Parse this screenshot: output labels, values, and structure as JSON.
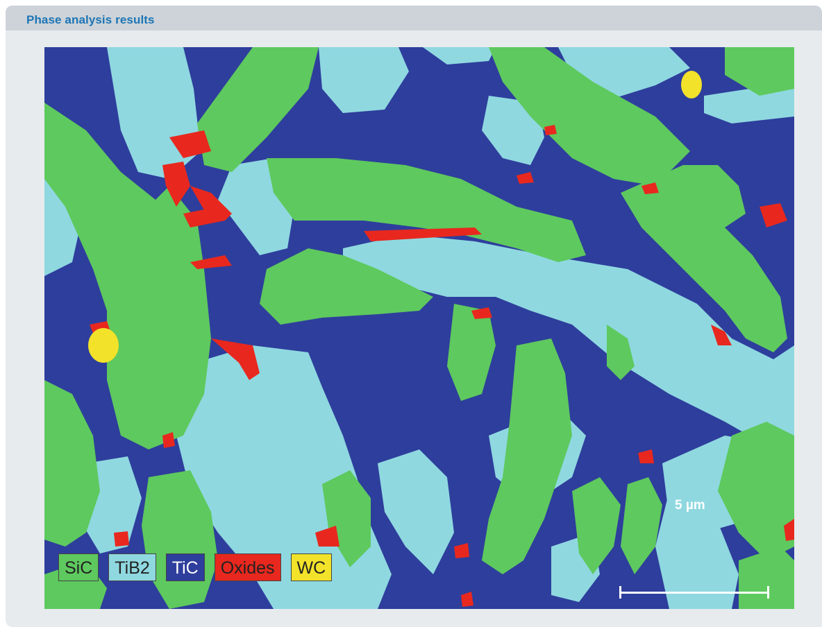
{
  "header": {
    "title": "Phase analysis results"
  },
  "colors": {
    "header_bg": "#cdd3d9",
    "panel_bg": "#e7ebee",
    "title": "#1d75b5",
    "SiC": "#5ec95e",
    "TiB2": "#8fd8e0",
    "TiC": "#2e3e9c",
    "Oxides": "#e8281e",
    "WC": "#f2e22a"
  },
  "legend": [
    {
      "label": "SiC",
      "color": "#5ec95e",
      "text_color": "dark"
    },
    {
      "label": "TiB2",
      "color": "#8fd8e0",
      "text_color": "dark"
    },
    {
      "label": "TiC",
      "color": "#2e3e9c",
      "text_color": "light"
    },
    {
      "label": "Oxides",
      "color": "#e8281e",
      "text_color": "dark"
    },
    {
      "label": "WC",
      "color": "#f2e22a",
      "text_color": "dark"
    }
  ],
  "scale": {
    "label": "5 µm"
  }
}
